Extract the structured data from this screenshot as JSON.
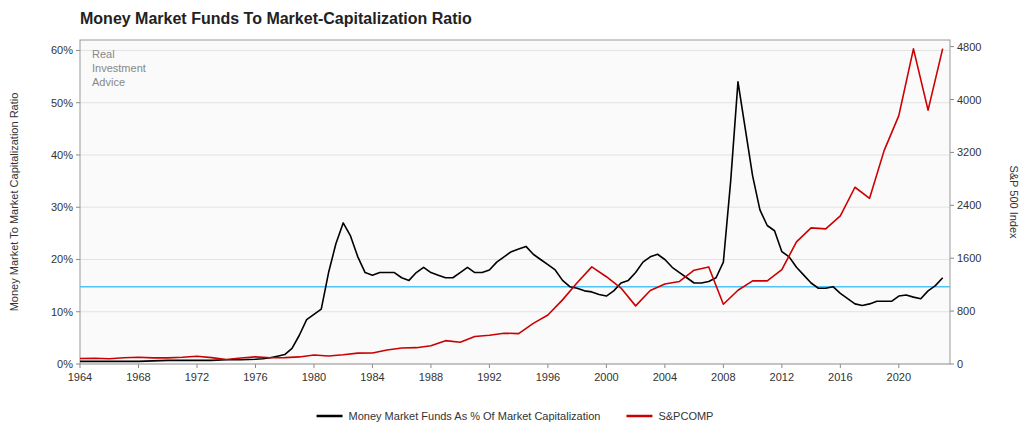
{
  "chart_data": {
    "type": "line",
    "title": "Money Market Funds To Market-Capitalization Ratio",
    "ylabel": "Money Market To Market Capitalization Ratio",
    "y2label": "S&P 500 Index",
    "xlim": [
      1964,
      2023.5
    ],
    "xticks": [
      1964,
      1968,
      1972,
      1976,
      1980,
      1984,
      1988,
      1992,
      1996,
      2000,
      2004,
      2008,
      2012,
      2016,
      2020
    ],
    "ylim": [
      0.0,
      0.62
    ],
    "yticks": [
      {
        "value": 0.0,
        "label": "0%"
      },
      {
        "value": 0.1,
        "label": "10%"
      },
      {
        "value": 0.2,
        "label": "20%"
      },
      {
        "value": 0.3,
        "label": "30%"
      },
      {
        "value": 0.4,
        "label": "40%"
      },
      {
        "value": 0.5,
        "label": "50%"
      },
      {
        "value": 0.6,
        "label": "60%"
      }
    ],
    "y2lim": [
      0,
      4900
    ],
    "y2ticks": [
      0,
      800,
      1600,
      2400,
      3200,
      4000,
      4800
    ],
    "grid": true,
    "legend": "bottom",
    "hlines": [
      {
        "value": 0.148,
        "color": "#4fc3f7"
      }
    ],
    "watermark": [
      "Real",
      "Investment",
      "Advice"
    ],
    "series": [
      {
        "name": "Money Market Funds As % Of Market Capitalization",
        "color": "#000000",
        "x": [
          1964,
          1965,
          1966,
          1967,
          1968,
          1969,
          1970,
          1971,
          1972,
          1973,
          1974,
          1975,
          1976,
          1976.5,
          1977,
          1977.5,
          1978,
          1978.5,
          1979,
          1979.5,
          1980,
          1980.5,
          1981,
          1981.5,
          1982,
          1982.5,
          1983,
          1983.5,
          1984,
          1984.5,
          1985,
          1985.5,
          1986,
          1986.5,
          1987,
          1987.5,
          1988,
          1988.5,
          1989,
          1989.5,
          1990,
          1990.5,
          1991,
          1991.5,
          1992,
          1992.5,
          1993,
          1993.5,
          1994,
          1994.5,
          1995,
          1995.5,
          1996,
          1996.5,
          1997,
          1997.5,
          1998,
          1998.5,
          1999,
          1999.5,
          2000,
          2000.5,
          2001,
          2001.5,
          2002,
          2002.5,
          2003,
          2003.5,
          2004,
          2004.5,
          2005,
          2005.5,
          2006,
          2006.5,
          2007,
          2007.5,
          2008,
          2008.5,
          2009,
          2009.5,
          2010,
          2010.5,
          2011,
          2011.5,
          2012,
          2012.5,
          2013,
          2013.5,
          2014,
          2014.5,
          2015,
          2015.5,
          2016,
          2016.5,
          2017,
          2017.5,
          2018,
          2018.5,
          2019,
          2019.5,
          2020,
          2020.5,
          2021,
          2021.5,
          2022,
          2022.5,
          2023
        ],
        "values": [
          0.005,
          0.005,
          0.005,
          0.005,
          0.005,
          0.006,
          0.007,
          0.007,
          0.007,
          0.007,
          0.008,
          0.008,
          0.009,
          0.01,
          0.012,
          0.015,
          0.018,
          0.03,
          0.055,
          0.085,
          0.095,
          0.105,
          0.175,
          0.23,
          0.27,
          0.245,
          0.205,
          0.175,
          0.17,
          0.175,
          0.175,
          0.175,
          0.165,
          0.16,
          0.175,
          0.185,
          0.175,
          0.17,
          0.165,
          0.165,
          0.175,
          0.185,
          0.175,
          0.175,
          0.18,
          0.195,
          0.205,
          0.215,
          0.22,
          0.225,
          0.21,
          0.2,
          0.19,
          0.18,
          0.16,
          0.148,
          0.145,
          0.14,
          0.138,
          0.133,
          0.13,
          0.14,
          0.155,
          0.16,
          0.175,
          0.195,
          0.205,
          0.21,
          0.2,
          0.185,
          0.175,
          0.165,
          0.155,
          0.155,
          0.158,
          0.165,
          0.195,
          0.35,
          0.54,
          0.45,
          0.36,
          0.295,
          0.265,
          0.255,
          0.215,
          0.205,
          0.185,
          0.17,
          0.155,
          0.145,
          0.145,
          0.148,
          0.135,
          0.125,
          0.115,
          0.112,
          0.115,
          0.12,
          0.12,
          0.12,
          0.13,
          0.132,
          0.128,
          0.125,
          0.14,
          0.15,
          0.165
        ]
      },
      {
        "name": "S&PCOMP",
        "color": "#cc0000",
        "axis": "y2",
        "x": [
          1964,
          1965,
          1966,
          1967,
          1968,
          1969,
          1970,
          1971,
          1972,
          1973,
          1974,
          1975,
          1976,
          1977,
          1978,
          1979,
          1980,
          1981,
          1982,
          1983,
          1984,
          1985,
          1986,
          1987,
          1988,
          1989,
          1990,
          1991,
          1992,
          1993,
          1994,
          1995,
          1996,
          1997,
          1998,
          1999,
          2000,
          2001,
          2002,
          2003,
          2004,
          2005,
          2006,
          2007,
          2008,
          2009,
          2010,
          2011,
          2012,
          2013,
          2014,
          2015,
          2016,
          2017,
          2018,
          2019,
          2020,
          2021,
          2022,
          2023
        ],
        "values": [
          84,
          88,
          80,
          94,
          103,
          92,
          92,
          102,
          118,
          97,
          68,
          90,
          107,
          95,
          96,
          107,
          135,
          122,
          140,
          164,
          167,
          211,
          242,
          247,
          277,
          353,
          330,
          417,
          435,
          466,
          459,
          615,
          740,
          970,
          1229,
          1469,
          1320,
          1148,
          879,
          1111,
          1211,
          1248,
          1418,
          1468,
          903,
          1115,
          1257,
          1257,
          1426,
          1848,
          2058,
          2044,
          2239,
          2673,
          2506,
          3231,
          3756,
          4766,
          3839,
          4769
        ]
      }
    ]
  }
}
